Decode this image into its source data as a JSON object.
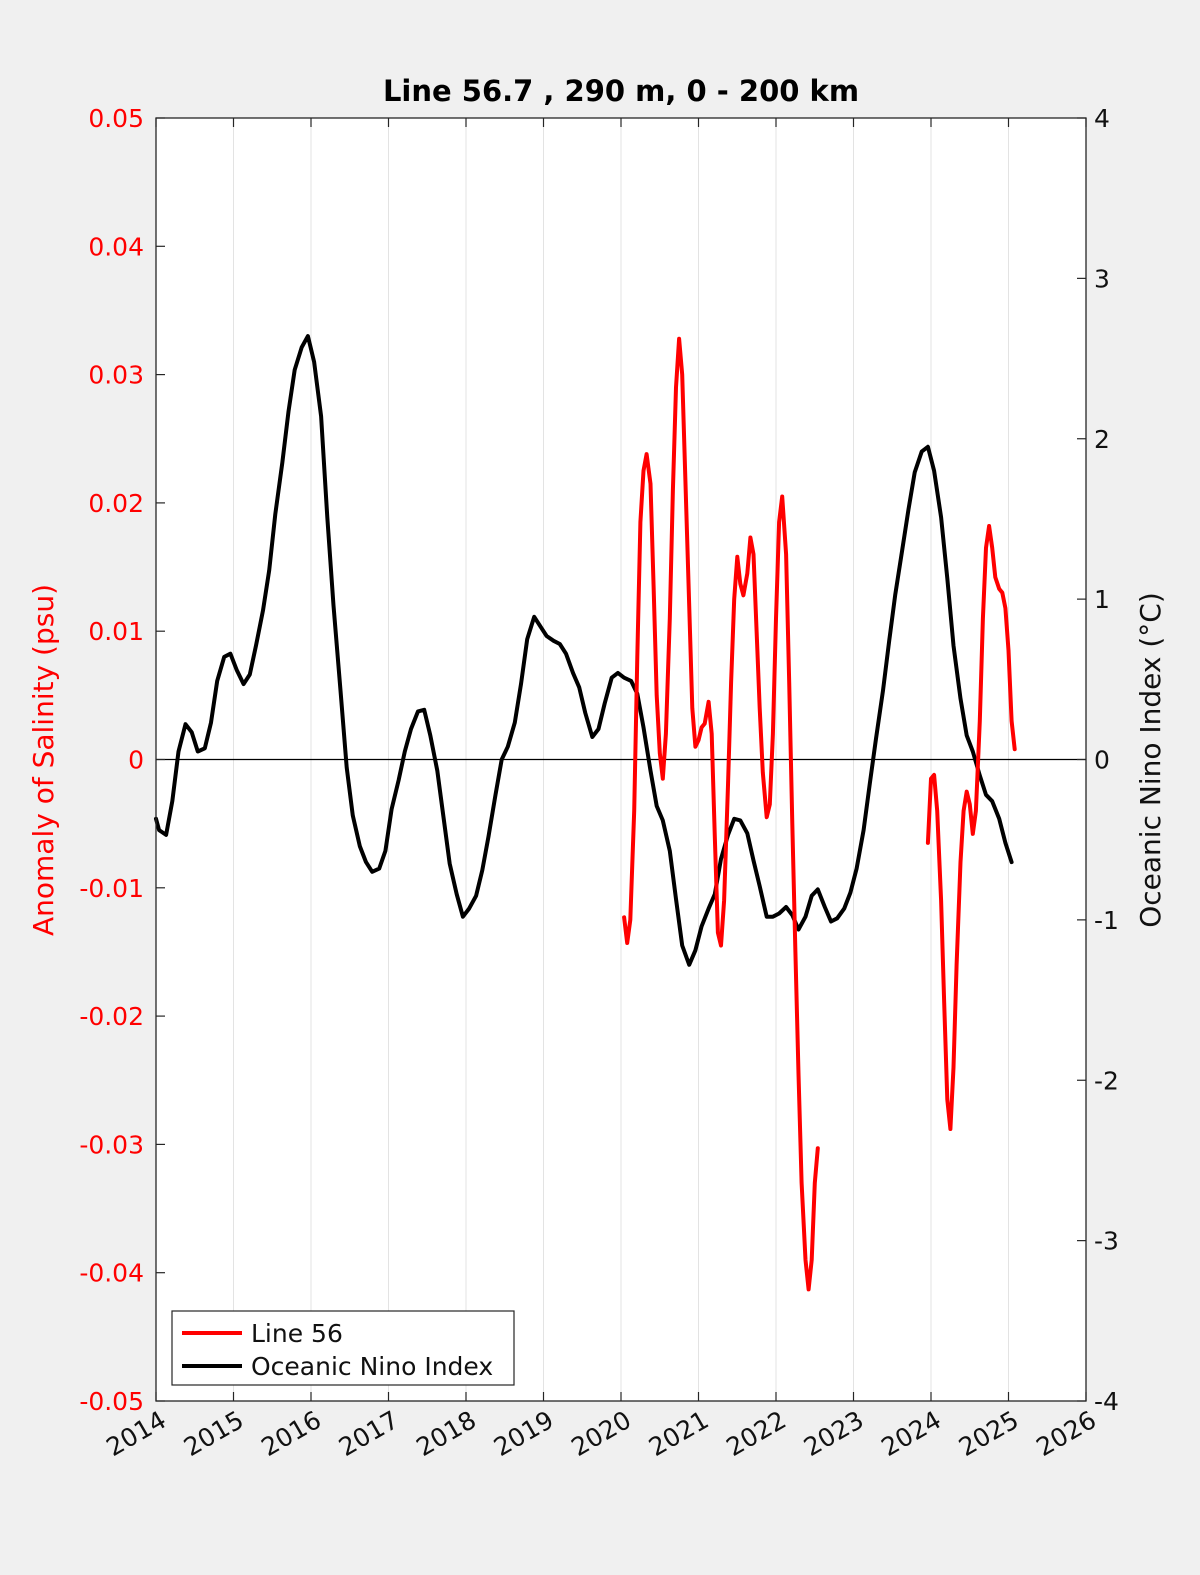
{
  "chart_data": {
    "type": "line",
    "title": "Line 56.7 , 290 m, 0 - 200 km",
    "ylabel_left": "Anomaly of Salinity (psu)",
    "ylabel_right": "Oceanic Nino Index (°C)",
    "xlim": [
      2014,
      2026
    ],
    "ylim_left": [
      -0.05,
      0.05
    ],
    "ylim_right": [
      -4,
      4
    ],
    "xticks": [
      "2014",
      "2015",
      "2016",
      "2017",
      "2018",
      "2019",
      "2020",
      "2021",
      "2022",
      "2023",
      "2024",
      "2025",
      "2026"
    ],
    "yticks_left": [
      "-0.05",
      "-0.04",
      "-0.03",
      "-0.02",
      "-0.01",
      "0",
      "0.01",
      "0.02",
      "0.03",
      "0.04",
      "0.05"
    ],
    "yticks_right": [
      "-4",
      "-3",
      "-2",
      "-1",
      "0",
      "1",
      "2",
      "3",
      "4"
    ],
    "grid": "vertical",
    "zero_line": true,
    "legend_position": "bottom-left",
    "colors": {
      "line56": "#ff0000",
      "oni": "#000000",
      "left_axis": "#ff0000"
    },
    "series": [
      {
        "name": "Line 56",
        "axis": "left",
        "color": "#ff0000",
        "segments": [
          [
            [
              2020.04,
              -0.0123
            ],
            [
              2020.08,
              -0.0143
            ],
            [
              2020.12,
              -0.0125
            ],
            [
              2020.17,
              -0.004
            ],
            [
              2020.21,
              0.008
            ],
            [
              2020.25,
              0.0185
            ],
            [
              2020.29,
              0.0225
            ],
            [
              2020.33,
              0.0238
            ],
            [
              2020.38,
              0.0215
            ],
            [
              2020.42,
              0.0135
            ],
            [
              2020.46,
              0.005
            ],
            [
              2020.5,
              0.0005
            ],
            [
              2020.54,
              -0.0015
            ],
            [
              2020.58,
              0.002
            ],
            [
              2020.63,
              0.011
            ],
            [
              2020.67,
              0.021
            ],
            [
              2020.71,
              0.029
            ],
            [
              2020.75,
              0.0328
            ],
            [
              2020.79,
              0.03
            ],
            [
              2020.83,
              0.022
            ],
            [
              2020.88,
              0.012
            ],
            [
              2020.92,
              0.004
            ],
            [
              2020.96,
              0.001
            ],
            [
              2021.0,
              0.0015
            ],
            [
              2021.04,
              0.0025
            ],
            [
              2021.08,
              0.0028
            ],
            [
              2021.13,
              0.0045
            ],
            [
              2021.17,
              0.002
            ],
            [
              2021.21,
              -0.006
            ],
            [
              2021.25,
              -0.0135
            ],
            [
              2021.29,
              -0.0145
            ],
            [
              2021.33,
              -0.011
            ],
            [
              2021.38,
              -0.002
            ],
            [
              2021.42,
              0.006
            ],
            [
              2021.46,
              0.0125
            ],
            [
              2021.5,
              0.0158
            ],
            [
              2021.54,
              0.0137
            ],
            [
              2021.58,
              0.0128
            ],
            [
              2021.63,
              0.0145
            ],
            [
              2021.67,
              0.0173
            ],
            [
              2021.71,
              0.016
            ],
            [
              2021.75,
              0.01
            ],
            [
              2021.79,
              0.004
            ],
            [
              2021.83,
              -0.001
            ],
            [
              2021.88,
              -0.0045
            ],
            [
              2021.92,
              -0.0035
            ],
            [
              2021.96,
              0.002
            ],
            [
              2022.0,
              0.011
            ],
            [
              2022.04,
              0.0185
            ],
            [
              2022.08,
              0.0205
            ],
            [
              2022.13,
              0.016
            ],
            [
              2022.17,
              0.006
            ],
            [
              2022.21,
              -0.005
            ],
            [
              2022.25,
              -0.015
            ],
            [
              2022.29,
              -0.0245
            ],
            [
              2022.33,
              -0.033
            ],
            [
              2022.38,
              -0.039
            ],
            [
              2022.42,
              -0.0413
            ],
            [
              2022.46,
              -0.039
            ],
            [
              2022.5,
              -0.033
            ],
            [
              2022.54,
              -0.0303
            ]
          ],
          [
            [
              2023.96,
              -0.0065
            ],
            [
              2024.0,
              -0.0015
            ],
            [
              2024.04,
              -0.0012
            ],
            [
              2024.08,
              -0.004
            ],
            [
              2024.13,
              -0.011
            ],
            [
              2024.17,
              -0.019
            ],
            [
              2024.21,
              -0.0265
            ],
            [
              2024.25,
              -0.0288
            ],
            [
              2024.29,
              -0.024
            ],
            [
              2024.33,
              -0.016
            ],
            [
              2024.38,
              -0.008
            ],
            [
              2024.42,
              -0.004
            ],
            [
              2024.46,
              -0.0025
            ],
            [
              2024.5,
              -0.0035
            ],
            [
              2024.54,
              -0.0058
            ],
            [
              2024.58,
              -0.004
            ],
            [
              2024.63,
              0.003
            ],
            [
              2024.67,
              0.011
            ],
            [
              2024.71,
              0.0165
            ],
            [
              2024.75,
              0.0182
            ],
            [
              2024.79,
              0.0165
            ],
            [
              2024.83,
              0.0142
            ],
            [
              2024.88,
              0.0133
            ],
            [
              2024.92,
              0.013
            ],
            [
              2024.96,
              0.0118
            ],
            [
              2025.0,
              0.0085
            ],
            [
              2025.04,
              0.003
            ],
            [
              2025.08,
              0.0008
            ]
          ]
        ]
      },
      {
        "name": "Oceanic Nino Index",
        "axis": "right",
        "color": "#000000",
        "segments": [
          [
            [
              2014.0,
              -0.37
            ],
            [
              2014.04,
              -0.44
            ],
            [
              2014.13,
              -0.47
            ],
            [
              2014.21,
              -0.26
            ],
            [
              2014.29,
              0.05
            ],
            [
              2014.38,
              0.22
            ],
            [
              2014.46,
              0.17
            ],
            [
              2014.54,
              0.05
            ],
            [
              2014.63,
              0.07
            ],
            [
              2014.71,
              0.23
            ],
            [
              2014.79,
              0.49
            ],
            [
              2014.88,
              0.64
            ],
            [
              2014.96,
              0.66
            ],
            [
              2015.04,
              0.56
            ],
            [
              2015.13,
              0.47
            ],
            [
              2015.21,
              0.53
            ],
            [
              2015.29,
              0.71
            ],
            [
              2015.38,
              0.93
            ],
            [
              2015.46,
              1.18
            ],
            [
              2015.54,
              1.53
            ],
            [
              2015.63,
              1.85
            ],
            [
              2015.71,
              2.17
            ],
            [
              2015.79,
              2.43
            ],
            [
              2015.88,
              2.57
            ],
            [
              2015.96,
              2.64
            ],
            [
              2016.04,
              2.48
            ],
            [
              2016.13,
              2.14
            ],
            [
              2016.21,
              1.51
            ],
            [
              2016.29,
              0.96
            ],
            [
              2016.38,
              0.43
            ],
            [
              2016.46,
              -0.05
            ],
            [
              2016.54,
              -0.35
            ],
            [
              2016.63,
              -0.54
            ],
            [
              2016.71,
              -0.64
            ],
            [
              2016.79,
              -0.7
            ],
            [
              2016.88,
              -0.68
            ],
            [
              2016.96,
              -0.57
            ],
            [
              2017.04,
              -0.31
            ],
            [
              2017.13,
              -0.13
            ],
            [
              2017.21,
              0.05
            ],
            [
              2017.29,
              0.19
            ],
            [
              2017.38,
              0.3
            ],
            [
              2017.46,
              0.31
            ],
            [
              2017.54,
              0.15
            ],
            [
              2017.63,
              -0.07
            ],
            [
              2017.71,
              -0.36
            ],
            [
              2017.79,
              -0.65
            ],
            [
              2017.88,
              -0.84
            ],
            [
              2017.96,
              -0.98
            ],
            [
              2018.04,
              -0.93
            ],
            [
              2018.13,
              -0.85
            ],
            [
              2018.21,
              -0.69
            ],
            [
              2018.29,
              -0.48
            ],
            [
              2018.38,
              -0.22
            ],
            [
              2018.46,
              0.0
            ],
            [
              2018.54,
              0.08
            ],
            [
              2018.63,
              0.23
            ],
            [
              2018.71,
              0.47
            ],
            [
              2018.79,
              0.75
            ],
            [
              2018.88,
              0.89
            ],
            [
              2018.96,
              0.83
            ],
            [
              2019.04,
              0.77
            ],
            [
              2019.13,
              0.74
            ],
            [
              2019.21,
              0.72
            ],
            [
              2019.29,
              0.66
            ],
            [
              2019.38,
              0.54
            ],
            [
              2019.46,
              0.45
            ],
            [
              2019.54,
              0.29
            ],
            [
              2019.63,
              0.14
            ],
            [
              2019.71,
              0.19
            ],
            [
              2019.79,
              0.35
            ],
            [
              2019.88,
              0.51
            ],
            [
              2019.96,
              0.54
            ],
            [
              2020.04,
              0.51
            ],
            [
              2020.13,
              0.49
            ],
            [
              2020.21,
              0.41
            ],
            [
              2020.29,
              0.2
            ],
            [
              2020.38,
              -0.07
            ],
            [
              2020.46,
              -0.29
            ],
            [
              2020.54,
              -0.38
            ],
            [
              2020.63,
              -0.57
            ],
            [
              2020.71,
              -0.87
            ],
            [
              2020.79,
              -1.16
            ],
            [
              2020.88,
              -1.28
            ],
            [
              2020.96,
              -1.19
            ],
            [
              2021.04,
              -1.04
            ],
            [
              2021.13,
              -0.93
            ],
            [
              2021.21,
              -0.84
            ],
            [
              2021.29,
              -0.62
            ],
            [
              2021.38,
              -0.47
            ],
            [
              2021.46,
              -0.37
            ],
            [
              2021.54,
              -0.38
            ],
            [
              2021.63,
              -0.46
            ],
            [
              2021.71,
              -0.63
            ],
            [
              2021.79,
              -0.79
            ],
            [
              2021.88,
              -0.98
            ],
            [
              2021.96,
              -0.98
            ],
            [
              2022.04,
              -0.96
            ],
            [
              2022.13,
              -0.92
            ],
            [
              2022.21,
              -0.97
            ],
            [
              2022.29,
              -1.06
            ],
            [
              2022.38,
              -0.98
            ],
            [
              2022.46,
              -0.85
            ],
            [
              2022.54,
              -0.81
            ],
            [
              2022.63,
              -0.92
            ],
            [
              2022.71,
              -1.01
            ],
            [
              2022.79,
              -0.99
            ],
            [
              2022.88,
              -0.93
            ],
            [
              2022.96,
              -0.83
            ],
            [
              2023.04,
              -0.68
            ],
            [
              2023.13,
              -0.44
            ],
            [
              2023.21,
              -0.15
            ],
            [
              2023.29,
              0.13
            ],
            [
              2023.38,
              0.43
            ],
            [
              2023.46,
              0.74
            ],
            [
              2023.54,
              1.03
            ],
            [
              2023.63,
              1.31
            ],
            [
              2023.71,
              1.56
            ],
            [
              2023.79,
              1.79
            ],
            [
              2023.88,
              1.92
            ],
            [
              2023.96,
              1.95
            ],
            [
              2024.04,
              1.8
            ],
            [
              2024.13,
              1.51
            ],
            [
              2024.21,
              1.13
            ],
            [
              2024.29,
              0.71
            ],
            [
              2024.38,
              0.38
            ],
            [
              2024.46,
              0.15
            ],
            [
              2024.54,
              0.05
            ],
            [
              2024.63,
              -0.1
            ],
            [
              2024.71,
              -0.22
            ],
            [
              2024.79,
              -0.26
            ],
            [
              2024.88,
              -0.37
            ],
            [
              2024.96,
              -0.52
            ],
            [
              2025.04,
              -0.64
            ]
          ]
        ]
      }
    ]
  }
}
